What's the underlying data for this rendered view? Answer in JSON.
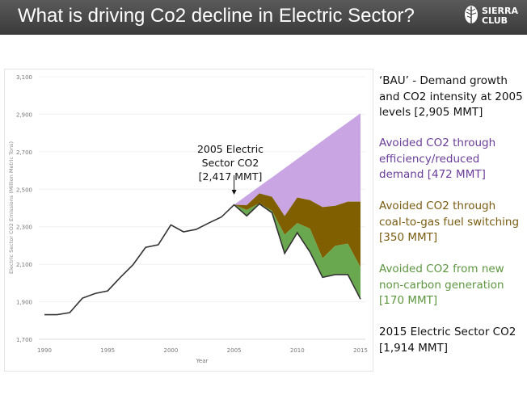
{
  "slide": {
    "title": "What is driving Co2 decline in Electric Sector?",
    "logo_text": [
      "SIERRA",
      "CLUB"
    ]
  },
  "notes": [
    {
      "text": "‘BAU’ - Demand growth and CO2 intensity at 2005 levels [2,905 MMT]",
      "color": "#111111"
    },
    {
      "text": "Avoided CO2 through efficiency/reduced demand [472 MMT]",
      "color": "#6a3d9a"
    },
    {
      "text": "Avoided CO2 through coal-to-gas fuel switching [350 MMT]",
      "color": "#7a5c12"
    },
    {
      "text": "Avoided CO2 from new non-carbon generation [170 MMT]",
      "color": "#5e9640"
    },
    {
      "text": "2015 Electric Sector CO2 [1,914 MMT]",
      "color": "#111111"
    }
  ],
  "chart_data": {
    "type": "area",
    "xlabel": "Year",
    "ylabel": "Electric Sector CO2 Emissions (Million Metric Tons)",
    "xlim": [
      1990,
      2015
    ],
    "ylim": [
      1700,
      3100
    ],
    "xticks": [
      "1990",
      "1995",
      "2000",
      "2005",
      "2010",
      "2015"
    ],
    "yticks": [
      "1,700",
      "1,900",
      "2,100",
      "2,300",
      "2,500",
      "2,700",
      "2,900",
      "3,100"
    ],
    "grid": "horizontal",
    "annotation": {
      "lines": [
        "2005 Electric",
        "Sector CO2",
        "[2,417 MMT]"
      ],
      "x": 2005,
      "y": 2417
    },
    "actual": {
      "x": [
        1990,
        1991,
        1992,
        1993,
        1994,
        1995,
        1996,
        1997,
        1998,
        1999,
        2000,
        2001,
        2002,
        2003,
        2004,
        2005,
        2006,
        2007,
        2008,
        2009,
        2010,
        2011,
        2012,
        2013,
        2014,
        2015
      ],
      "values": [
        1831,
        1831,
        1842,
        1919,
        1944,
        1958,
        2030,
        2097,
        2190,
        2204,
        2310,
        2273,
        2286,
        2320,
        2352,
        2417,
        2358,
        2422,
        2375,
        2158,
        2268,
        2166,
        2030,
        2045,
        2045,
        1914
      ],
      "color": "#333333"
    },
    "stack_x": [
      2005,
      2006,
      2007,
      2008,
      2009,
      2010,
      2011,
      2012,
      2013,
      2014,
      2015
    ],
    "series": [
      {
        "key": "non-carbon",
        "top": [
          2417,
          2390,
          2425,
          2385,
          2258,
          2320,
          2290,
          2132,
          2198,
          2210,
          2084
        ],
        "color": "#6aa84f"
      },
      {
        "key": "coal-to-gas",
        "top": [
          2417,
          2415,
          2478,
          2460,
          2357,
          2456,
          2442,
          2405,
          2412,
          2434,
          2434
        ],
        "color": "#7f5f00"
      },
      {
        "key": "efficiency",
        "top": [
          2417,
          2466,
          2515,
          2563,
          2612,
          2661,
          2710,
          2759,
          2808,
          2856,
          2905
        ],
        "color": "#c9a6e3"
      }
    ]
  }
}
